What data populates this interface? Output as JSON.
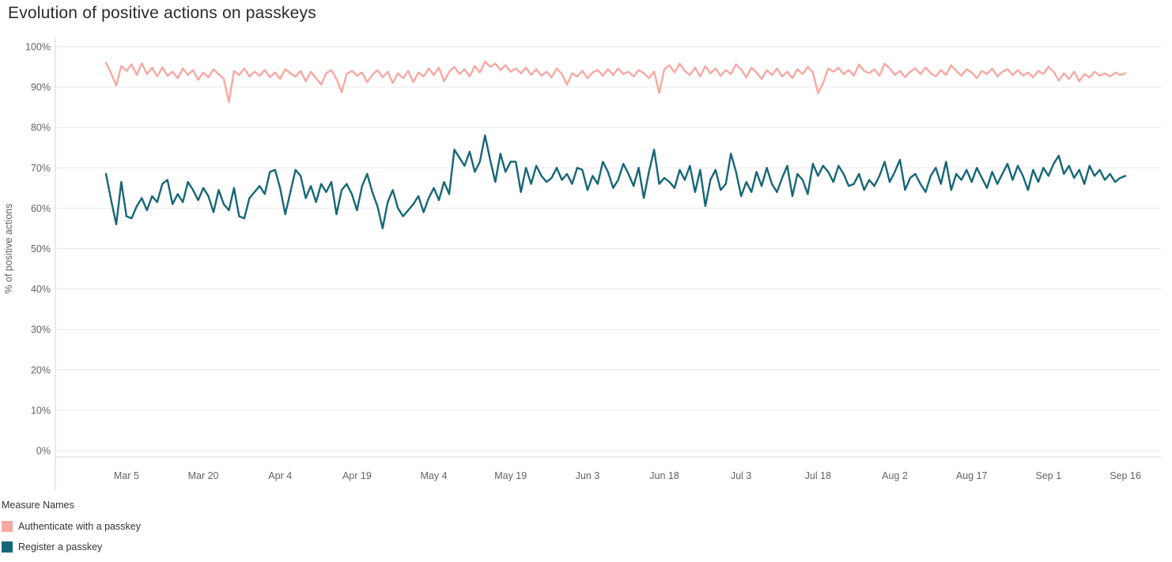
{
  "chart_data": {
    "type": "line",
    "title": "Evolution of positive actions on passkeys",
    "xlabel": "",
    "ylabel": "% of positive actions",
    "ylim": [
      0,
      100
    ],
    "grid": "horizontal",
    "legend_position": "bottom-left",
    "legend_title": "Measure Names",
    "y_ticks": [
      {
        "value": 0,
        "label": "0%"
      },
      {
        "value": 10,
        "label": "10%"
      },
      {
        "value": 20,
        "label": "20%"
      },
      {
        "value": 30,
        "label": "30%"
      },
      {
        "value": 40,
        "label": "40%"
      },
      {
        "value": 50,
        "label": "50%"
      },
      {
        "value": 60,
        "label": "60%"
      },
      {
        "value": 70,
        "label": "70%"
      },
      {
        "value": 80,
        "label": "80%"
      },
      {
        "value": 90,
        "label": "90%"
      },
      {
        "value": 100,
        "label": "100%"
      }
    ],
    "x_ticks": [
      {
        "index": 4,
        "label": "Mar 5"
      },
      {
        "index": 19,
        "label": "Mar 20"
      },
      {
        "index": 34,
        "label": "Apr 4"
      },
      {
        "index": 49,
        "label": "Apr 19"
      },
      {
        "index": 64,
        "label": "May 4"
      },
      {
        "index": 79,
        "label": "May 19"
      },
      {
        "index": 94,
        "label": "Jun 3"
      },
      {
        "index": 109,
        "label": "Jun 18"
      },
      {
        "index": 124,
        "label": "Jul 3"
      },
      {
        "index": 139,
        "label": "Jul 18"
      },
      {
        "index": 154,
        "label": "Aug 2"
      },
      {
        "index": 169,
        "label": "Aug 17"
      },
      {
        "index": 184,
        "label": "Sep 1"
      },
      {
        "index": 199,
        "label": "Sep 16"
      }
    ],
    "series": [
      {
        "name": "Authenticate with a passkey",
        "color": "#f8a8a2",
        "values": [
          96.0,
          93.4,
          90.4,
          95.2,
          94.0,
          95.6,
          93.0,
          95.9,
          93.2,
          94.8,
          92.6,
          94.9,
          92.8,
          93.8,
          92.2,
          94.6,
          93.0,
          94.2,
          91.8,
          93.6,
          92.4,
          94.4,
          93.2,
          92.0,
          86.3,
          94.0,
          93.0,
          94.6,
          92.6,
          93.8,
          92.8,
          94.2,
          92.4,
          93.6,
          92.0,
          94.4,
          93.4,
          92.6,
          94.0,
          91.4,
          93.8,
          92.2,
          90.6,
          93.4,
          94.2,
          92.0,
          88.7,
          93.2,
          94.0,
          92.8,
          93.6,
          91.2,
          93.0,
          94.2,
          92.4,
          93.8,
          91.0,
          93.4,
          92.2,
          94.0,
          91.2,
          93.6,
          92.6,
          94.6,
          93.0,
          94.8,
          91.4,
          93.8,
          95.0,
          93.2,
          94.4,
          92.6,
          95.2,
          93.6,
          96.3,
          95.0,
          95.8,
          94.2,
          95.4,
          93.8,
          94.6,
          93.4,
          94.8,
          93.0,
          94.4,
          92.8,
          93.8,
          92.4,
          94.6,
          93.2,
          90.6,
          93.4,
          92.6,
          94.0,
          92.2,
          93.6,
          94.2,
          92.8,
          94.4,
          93.0,
          94.6,
          93.2,
          93.8,
          92.6,
          94.2,
          93.4,
          92.2,
          93.8,
          88.6,
          94.4,
          95.4,
          93.6,
          95.8,
          94.0,
          93.0,
          94.8,
          92.6,
          95.2,
          93.4,
          94.6,
          92.8,
          94.2,
          93.2,
          95.6,
          94.4,
          92.4,
          94.8,
          93.6,
          92.0,
          94.2,
          93.0,
          94.6,
          92.6,
          93.8,
          92.2,
          94.4,
          93.2,
          95.0,
          93.6,
          88.5,
          91.0,
          94.6,
          93.8,
          94.8,
          93.2,
          94.2,
          92.8,
          95.6,
          94.0,
          93.4,
          94.4,
          92.8,
          95.8,
          94.6,
          93.0,
          94.0,
          92.4,
          93.8,
          94.6,
          93.2,
          94.8,
          93.4,
          92.6,
          94.2,
          93.0,
          95.4,
          94.0,
          92.8,
          94.4,
          93.6,
          92.2,
          94.0,
          93.2,
          94.6,
          92.6,
          93.8,
          94.4,
          93.0,
          94.2,
          92.8,
          93.6,
          92.4,
          94.0,
          93.2,
          95.0,
          93.8,
          91.6,
          93.4,
          92.0,
          93.8,
          91.4,
          93.2,
          92.4,
          93.8,
          92.8,
          93.4,
          92.6,
          93.6,
          93.0,
          93.4
        ]
      },
      {
        "name": "Register a passkey",
        "color": "#156777",
        "values": [
          68.5,
          62.0,
          56.0,
          66.5,
          58.0,
          57.5,
          60.5,
          62.5,
          59.5,
          63.0,
          61.5,
          66.0,
          67.0,
          61.0,
          63.5,
          61.5,
          66.5,
          64.5,
          62.0,
          65.0,
          63.0,
          59.0,
          64.5,
          61.0,
          59.5,
          65.0,
          58.0,
          57.5,
          62.5,
          64.0,
          65.5,
          63.5,
          69.0,
          69.5,
          65.0,
          58.5,
          64.0,
          69.5,
          68.0,
          62.5,
          65.5,
          61.5,
          66.0,
          64.0,
          66.5,
          58.5,
          64.5,
          66.0,
          63.5,
          59.5,
          65.5,
          68.5,
          64.0,
          60.5,
          55.0,
          61.5,
          64.5,
          60.0,
          58.0,
          59.5,
          61.0,
          63.0,
          59.0,
          62.5,
          65.0,
          62.0,
          66.5,
          63.5,
          74.5,
          72.5,
          70.5,
          74.0,
          69.0,
          71.5,
          78.0,
          72.0,
          66.5,
          73.5,
          69.0,
          71.5,
          71.5,
          64.0,
          70.0,
          66.0,
          70.5,
          68.0,
          66.5,
          67.5,
          70.0,
          67.0,
          68.5,
          66.0,
          70.0,
          69.5,
          64.5,
          68.0,
          66.0,
          71.5,
          69.0,
          65.0,
          67.0,
          71.0,
          68.5,
          65.5,
          70.0,
          62.5,
          69.0,
          74.5,
          66.0,
          67.5,
          66.5,
          65.0,
          69.5,
          67.0,
          70.5,
          64.0,
          69.5,
          60.5,
          67.0,
          69.5,
          64.5,
          66.0,
          73.5,
          69.0,
          63.0,
          66.5,
          64.0,
          69.0,
          65.5,
          70.0,
          66.0,
          64.0,
          67.5,
          70.5,
          63.0,
          68.5,
          67.0,
          63.5,
          71.0,
          68.0,
          70.5,
          69.0,
          66.5,
          70.5,
          68.5,
          65.5,
          66.0,
          68.5,
          64.5,
          67.0,
          65.5,
          68.0,
          71.5,
          66.5,
          69.0,
          72.0,
          64.5,
          67.5,
          68.5,
          66.0,
          64.0,
          68.0,
          70.0,
          66.0,
          71.5,
          64.5,
          68.5,
          67.0,
          69.5,
          66.5,
          70.0,
          67.5,
          65.0,
          69.0,
          66.0,
          68.5,
          71.0,
          67.0,
          70.5,
          68.0,
          64.5,
          69.5,
          66.5,
          70.0,
          68.0,
          71.0,
          73.0,
          68.5,
          70.5,
          67.5,
          69.5,
          66.0,
          70.5,
          68.0,
          69.5,
          67.0,
          68.5,
          66.5,
          67.5,
          68.0
        ]
      }
    ]
  }
}
